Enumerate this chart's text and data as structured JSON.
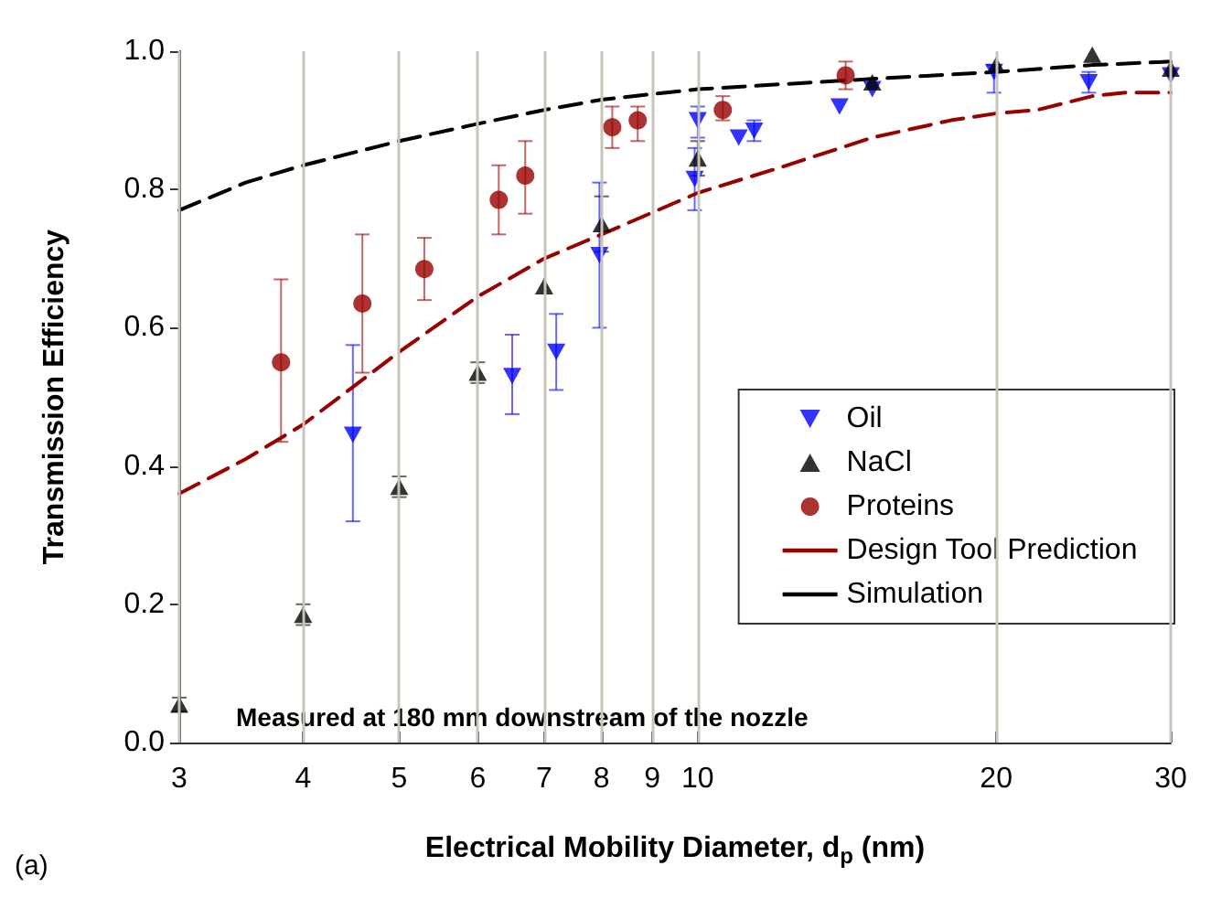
{
  "chart_data": {
    "type": "scatter",
    "xlabel": "Electrical Mobility Diameter, d$_{p}$ (nm)",
    "ylabel": "Transmission Efficiency",
    "log": "x",
    "xlim": [
      3,
      30
    ],
    "xticks": [
      3,
      4,
      5,
      6,
      7,
      8,
      9,
      10,
      20,
      30
    ],
    "ylim": [
      0,
      1
    ],
    "yticks": [
      {
        "value": 0,
        "label": "0.0"
      },
      {
        "value": 0.2,
        "label": "0.2"
      },
      {
        "value": 0.4,
        "label": "0.4"
      },
      {
        "value": 0.6,
        "label": "0.6"
      },
      {
        "value": 0.8,
        "label": "0.8"
      },
      {
        "value": 1,
        "label": "1.0"
      }
    ],
    "grid": "x",
    "legend": "bottom right",
    "annotations": [
      "Measured at 180 mm downstream of the nozzle",
      "(a)"
    ],
    "series": [
      {
        "name": "Oil",
        "marker": "triangle-down",
        "color": "#0000ff",
        "x": [
          4.49,
          6.5,
          7.2,
          7.96,
          9.93,
          10.0,
          11.0,
          11.4,
          13.9,
          15.0,
          19.9,
          24.8,
          30
        ],
        "values": [
          0.445,
          0.53,
          0.565,
          0.705,
          0.815,
          0.9,
          0.875,
          0.885,
          0.92,
          0.945,
          0.97,
          0.955,
          0.965
        ],
        "errors": [
          [
            0.32,
            0.575
          ],
          [
            0.475,
            0.59
          ],
          [
            0.51,
            0.62
          ],
          [
            0.6,
            0.81
          ],
          [
            0.77,
            0.86
          ],
          [
            0.875,
            0.92
          ],
          null,
          [
            0.87,
            0.9
          ],
          null,
          null,
          [
            0.94,
            0.98
          ],
          [
            0.94,
            0.97
          ],
          null
        ]
      },
      {
        "name": "NaCl",
        "marker": "triangle",
        "color": "#000000",
        "x": [
          3,
          4,
          5,
          6,
          7,
          8,
          10,
          15,
          20,
          25,
          30
        ],
        "values": [
          0.055,
          0.185,
          0.37,
          0.535,
          0.66,
          0.75,
          0.845,
          0.955,
          0.98,
          0.995,
          0.975
        ],
        "errors": [
          [
            0.045,
            0.065
          ],
          [
            0.17,
            0.2
          ],
          [
            0.355,
            0.385
          ],
          [
            0.52,
            0.55
          ],
          null,
          [
            0.71,
            0.79
          ],
          [
            0.82,
            0.87
          ],
          null,
          null,
          null,
          null
        ]
      },
      {
        "name": "Proteins",
        "marker": "circle",
        "color": "#990000",
        "x": [
          3.8,
          4.59,
          5.3,
          6.3,
          6.7,
          8.2,
          8.7,
          10.6,
          14.1
        ],
        "values": [
          0.55,
          0.635,
          0.685,
          0.785,
          0.82,
          0.89,
          0.9,
          0.915,
          0.965
        ],
        "errors": [
          [
            0.435,
            0.67
          ],
          [
            0.535,
            0.735
          ],
          [
            0.64,
            0.73
          ],
          [
            0.735,
            0.835
          ],
          [
            0.765,
            0.87
          ],
          [
            0.86,
            0.92
          ],
          [
            0.87,
            0.92
          ],
          [
            0.9,
            0.935
          ],
          [
            0.945,
            0.985
          ]
        ]
      },
      {
        "name": "Design Tool Prediction",
        "type": "line",
        "marker": "none",
        "line_style": "dashed",
        "color": "#990000",
        "x": [
          3,
          3.5,
          4,
          5,
          6,
          7,
          8,
          10,
          12,
          15,
          18,
          20,
          22,
          25,
          27,
          30
        ],
        "values": [
          0.36,
          0.41,
          0.46,
          0.565,
          0.645,
          0.7,
          0.735,
          0.795,
          0.83,
          0.875,
          0.9,
          0.91,
          0.915,
          0.935,
          0.94,
          0.94
        ]
      },
      {
        "name": "Simulation",
        "type": "line",
        "marker": "none",
        "line_style": "dashed",
        "color": "#000000",
        "x": [
          3,
          3.5,
          4,
          5,
          6,
          7,
          8,
          10,
          15,
          20,
          25,
          30
        ],
        "values": [
          0.77,
          0.81,
          0.835,
          0.87,
          0.895,
          0.915,
          0.93,
          0.945,
          0.96,
          0.97,
          0.98,
          0.985
        ]
      }
    ]
  }
}
